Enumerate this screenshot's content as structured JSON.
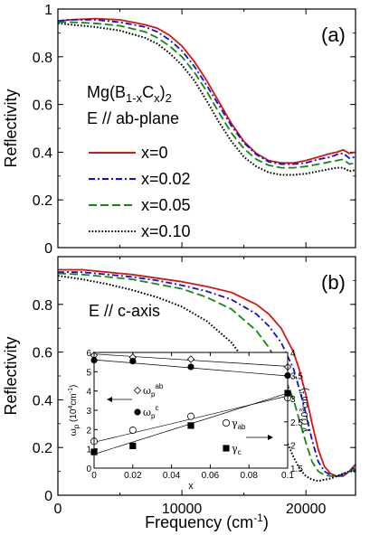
{
  "chart_data": [
    {
      "type": "line",
      "panel_label": "(a)",
      "ylabel": "Reflectivity",
      "annotation": [
        "Mg(B",
        "1-x",
        "C",
        "x",
        ")",
        "2"
      ],
      "annotation2": "E // ab-plane",
      "xlim": [
        0,
        24000
      ],
      "ylim": [
        0,
        1
      ],
      "yticks": [
        0,
        0.2,
        0.4,
        0.6,
        0.8,
        1
      ],
      "yticklabels": [
        "0",
        "0.2",
        "0.4",
        "0.6",
        "0.8",
        "1"
      ],
      "legend_placement": "left-middle",
      "series": [
        {
          "name": "x=0",
          "color": "#d01818",
          "dash": "solid",
          "x": [
            0,
            1000,
            3000,
            5000,
            7000,
            8000,
            9000,
            10000,
            11000,
            12000,
            13000,
            14000,
            15000,
            16000,
            17000,
            18000,
            19000,
            20000,
            21000,
            22000,
            22500,
            23000,
            23500,
            24000
          ],
          "y": [
            0.95,
            0.955,
            0.96,
            0.955,
            0.935,
            0.92,
            0.89,
            0.845,
            0.78,
            0.7,
            0.61,
            0.52,
            0.445,
            0.395,
            0.365,
            0.355,
            0.355,
            0.365,
            0.38,
            0.395,
            0.4,
            0.41,
            0.395,
            0.4
          ]
        },
        {
          "name": "x=0.02",
          "color": "#1010d0",
          "dash": "dashdot",
          "x": [
            0,
            1000,
            3000,
            5000,
            7000,
            8000,
            9000,
            10000,
            11000,
            12000,
            13000,
            14000,
            15000,
            16000,
            17000,
            18000,
            19000,
            20000,
            21000,
            22000,
            22500,
            23000,
            23500,
            24000
          ],
          "y": [
            0.95,
            0.955,
            0.955,
            0.945,
            0.925,
            0.905,
            0.87,
            0.825,
            0.76,
            0.68,
            0.595,
            0.51,
            0.44,
            0.39,
            0.36,
            0.35,
            0.35,
            0.355,
            0.37,
            0.38,
            0.39,
            0.395,
            0.375,
            0.38
          ]
        },
        {
          "name": "x=0.05",
          "color": "#108a10",
          "dash": "dash",
          "x": [
            0,
            1000,
            3000,
            5000,
            7000,
            8000,
            9000,
            10000,
            11000,
            12000,
            13000,
            14000,
            15000,
            16000,
            17000,
            18000,
            19000,
            20000,
            21000,
            22000,
            22500,
            23000,
            23500,
            24000
          ],
          "y": [
            0.945,
            0.945,
            0.94,
            0.93,
            0.905,
            0.88,
            0.845,
            0.8,
            0.735,
            0.655,
            0.565,
            0.48,
            0.415,
            0.37,
            0.345,
            0.335,
            0.335,
            0.34,
            0.35,
            0.36,
            0.365,
            0.37,
            0.35,
            0.355
          ]
        },
        {
          "name": "x=0.10",
          "color": "#000000",
          "dash": "dot",
          "x": [
            0,
            1000,
            3000,
            5000,
            7000,
            8000,
            9000,
            10000,
            11000,
            12000,
            13000,
            14000,
            15000,
            16000,
            17000,
            18000,
            19000,
            20000,
            21000,
            22000,
            22500,
            23000,
            23500,
            24000
          ],
          "y": [
            0.94,
            0.935,
            0.925,
            0.91,
            0.88,
            0.855,
            0.815,
            0.765,
            0.7,
            0.615,
            0.525,
            0.445,
            0.38,
            0.34,
            0.315,
            0.305,
            0.305,
            0.31,
            0.32,
            0.33,
            0.335,
            0.335,
            0.32,
            0.325
          ]
        }
      ]
    },
    {
      "type": "line",
      "panel_label": "(b)",
      "ylabel": "Reflectivity",
      "xlabel": "Frequency (cm",
      "xlabel_sup": "-1",
      "xlabel_end": ")",
      "annotation": "E // c-axis",
      "xlim": [
        0,
        24000
      ],
      "ylim": [
        0,
        1
      ],
      "xticks": [
        0,
        10000,
        20000
      ],
      "xticklabels": [
        "0",
        "10000",
        "20000"
      ],
      "yticks": [
        0,
        0.2,
        0.4,
        0.6,
        0.8
      ],
      "yticklabels": [
        "0",
        "0.2",
        "0.4",
        "0.6",
        "0.8"
      ],
      "series": [
        {
          "name": "x=0",
          "color": "#d01818",
          "dash": "solid",
          "x": [
            0,
            2000,
            4000,
            6000,
            8000,
            10000,
            12000,
            14000,
            16000,
            17000,
            18000,
            19000,
            19500,
            20000,
            20500,
            21000,
            21500,
            22000,
            22500,
            23000,
            23500,
            24000
          ],
          "y": [
            0.945,
            0.945,
            0.935,
            0.925,
            0.91,
            0.895,
            0.875,
            0.85,
            0.8,
            0.76,
            0.7,
            0.6,
            0.52,
            0.42,
            0.3,
            0.19,
            0.12,
            0.09,
            0.08,
            0.08,
            0.1,
            0.13
          ]
        },
        {
          "name": "x=0.02",
          "color": "#1010d0",
          "dash": "dashdot",
          "x": [
            0,
            2000,
            4000,
            6000,
            8000,
            10000,
            12000,
            14000,
            16000,
            17000,
            18000,
            19000,
            19500,
            20000,
            20500,
            21000,
            21500,
            22000,
            22500,
            23000,
            23500,
            24000
          ],
          "y": [
            0.935,
            0.935,
            0.925,
            0.915,
            0.9,
            0.88,
            0.855,
            0.82,
            0.76,
            0.71,
            0.64,
            0.53,
            0.44,
            0.34,
            0.23,
            0.14,
            0.1,
            0.085,
            0.08,
            0.085,
            0.1,
            0.12
          ]
        },
        {
          "name": "x=0.05",
          "color": "#108a10",
          "dash": "dash",
          "x": [
            0,
            2000,
            4000,
            6000,
            8000,
            10000,
            12000,
            14000,
            16000,
            17000,
            18000,
            19000,
            19500,
            20000,
            20500,
            21000,
            21500,
            22000,
            22500,
            23000,
            23500,
            24000
          ],
          "y": [
            0.93,
            0.925,
            0.915,
            0.905,
            0.885,
            0.865,
            0.83,
            0.78,
            0.69,
            0.62,
            0.53,
            0.4,
            0.31,
            0.22,
            0.14,
            0.1,
            0.085,
            0.08,
            0.08,
            0.09,
            0.1,
            0.11
          ]
        },
        {
          "name": "x=0.10",
          "color": "#000000",
          "dash": "dot",
          "x": [
            0,
            2000,
            4000,
            6000,
            8000,
            10000,
            12000,
            14000,
            16000,
            17000,
            18000,
            19000,
            19500,
            20000,
            20500,
            21000,
            21500,
            22000,
            22500,
            23000,
            23500,
            24000
          ],
          "y": [
            0.92,
            0.905,
            0.885,
            0.86,
            0.83,
            0.79,
            0.73,
            0.64,
            0.5,
            0.4,
            0.28,
            0.16,
            0.11,
            0.08,
            0.065,
            0.06,
            0.065,
            0.07,
            0.08,
            0.09,
            0.1,
            0.1
          ]
        }
      ]
    },
    {
      "type": "scatter",
      "role": "inset",
      "xlabel": "x",
      "xlim": [
        0,
        0.1
      ],
      "xticks": [
        0,
        0.02,
        0.04,
        0.06,
        0.08,
        0.1
      ],
      "xticklabels": [
        "0",
        "0.02",
        "0.04",
        "0.06",
        "0.08",
        "0.1"
      ],
      "ylabel_left": [
        "ω",
        "p",
        " (10",
        "4",
        "cm",
        "-1",
        ")"
      ],
      "ylim_left": [
        0,
        6
      ],
      "yticks_left": [
        0,
        1,
        2,
        3,
        4,
        5,
        6
      ],
      "ylabel_right": [
        "γ",
        " (10",
        "3",
        "cm",
        "-1",
        ")"
      ],
      "ylim_right": [
        1.5,
        4
      ],
      "yticks_right": [
        1.5,
        2,
        2.5,
        3,
        3.5,
        4
      ],
      "yticklabels_right": [
        "1.5",
        "2",
        "2.5",
        "3",
        "3.5",
        "4"
      ],
      "legend_labels": [
        {
          "sym": "ω",
          "sub": "p",
          "sup": "ab",
          "marker": "diamond-open"
        },
        {
          "sym": "ω",
          "sub": "p",
          "sup": "c",
          "marker": "circle-filled"
        },
        {
          "sym": "γ",
          "sub": "ab",
          "marker": "circle-open"
        },
        {
          "sym": "γ",
          "sub": "c",
          "marker": "square-filled"
        }
      ],
      "series": [
        {
          "marker": "diamond-open",
          "axis": "left",
          "x": [
            0,
            0.02,
            0.05,
            0.1
          ],
          "y": [
            5.85,
            5.75,
            5.65,
            5.25
          ]
        },
        {
          "marker": "circle-filled",
          "axis": "left",
          "x": [
            0,
            0.02,
            0.05,
            0.1
          ],
          "y": [
            5.6,
            5.55,
            5.25,
            4.8
          ]
        },
        {
          "marker": "circle-open",
          "axis": "right",
          "x": [
            0,
            0.02,
            0.05,
            0.1
          ],
          "y": [
            2.08,
            2.32,
            2.62,
            3.02
          ]
        },
        {
          "marker": "square-filled",
          "axis": "right",
          "x": [
            0,
            0.02,
            0.05,
            0.1
          ],
          "y": [
            1.85,
            1.98,
            2.42,
            3.12
          ]
        }
      ],
      "fit_lines": [
        {
          "axis": "left",
          "x": [
            0,
            0.1
          ],
          "y": [
            5.92,
            5.28
          ]
        },
        {
          "axis": "left",
          "x": [
            0,
            0.1
          ],
          "y": [
            5.62,
            4.78
          ]
        },
        {
          "axis": "right",
          "x": [
            0,
            0.1
          ],
          "y": [
            2.06,
            3.06
          ]
        },
        {
          "axis": "right",
          "x": [
            0,
            0.1
          ],
          "y": [
            1.8,
            3.12
          ]
        }
      ]
    }
  ]
}
